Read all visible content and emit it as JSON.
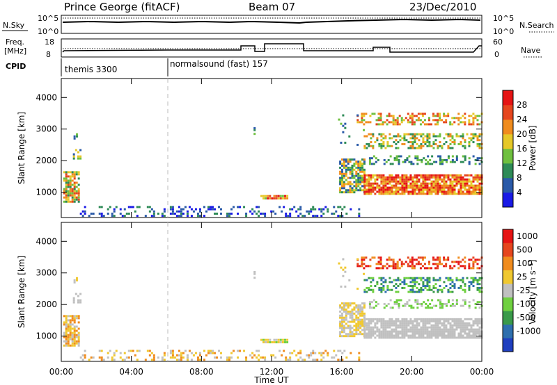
{
  "header": {
    "station": "Prince George (fitACF)",
    "beam": "Beam 07",
    "date": "23/Dec/2010"
  },
  "noise_panel": {
    "left_label": "N.Sky",
    "left_ticks": [
      "10^5",
      "10^0"
    ],
    "right_ticks": [
      "10^5",
      "10^0"
    ],
    "right_label": "N.Search"
  },
  "freq_panel": {
    "left_label_line1": "Freq.",
    "left_label_line2": "[MHz]",
    "left_ticks": [
      "18",
      "8"
    ],
    "right_ticks": [
      "60",
      "0"
    ],
    "right_label": "Nave"
  },
  "cpid_panel": {
    "label": "CPID",
    "modes": [
      {
        "name": "themis 3300",
        "start_hour": 0,
        "end_hour": 6
      },
      {
        "name": "normalsound (fast) 157",
        "start_hour": 6,
        "end_hour": 24
      }
    ]
  },
  "chart_data": [
    {
      "type": "heatmap",
      "name": "power",
      "ylabel": "Slant Range [km]",
      "xlabel": "",
      "xlim": [
        0,
        24
      ],
      "ylim": [
        200,
        4600
      ],
      "yticks": [
        "1000",
        "2000",
        "3000",
        "4000"
      ],
      "colorbar": {
        "label": "Power [dB]",
        "ticks": [
          "4",
          "8",
          "12",
          "16",
          "20",
          "24",
          "28"
        ],
        "colors": [
          "#1a1ae6",
          "#2a5aa8",
          "#2e8b57",
          "#6fc03f",
          "#e6c828",
          "#f08c1e",
          "#e6461e",
          "#e61414"
        ]
      }
    },
    {
      "type": "heatmap",
      "name": "velocity",
      "ylabel": "Slant Range [km]",
      "xlabel": "Time UT",
      "xlim": [
        0,
        24
      ],
      "ylim": [
        200,
        4600
      ],
      "yticks": [
        "1000",
        "2000",
        "3000",
        "4000"
      ],
      "xticks": [
        "00:00",
        "04:00",
        "08:00",
        "12:00",
        "16:00",
        "20:00",
        "00:00"
      ],
      "colorbar": {
        "label": "Velocity [m s⁻¹]",
        "ticks": [
          "1000",
          "500",
          "100",
          "25",
          "-25",
          "-100",
          "-500",
          "-1000"
        ],
        "colors": [
          "#1f3fbf",
          "#2e6fae",
          "#3a9a4a",
          "#6fd040",
          "#c0c0c0",
          "#f0c830",
          "#f08c1e",
          "#e6461e",
          "#e61414"
        ]
      }
    }
  ]
}
